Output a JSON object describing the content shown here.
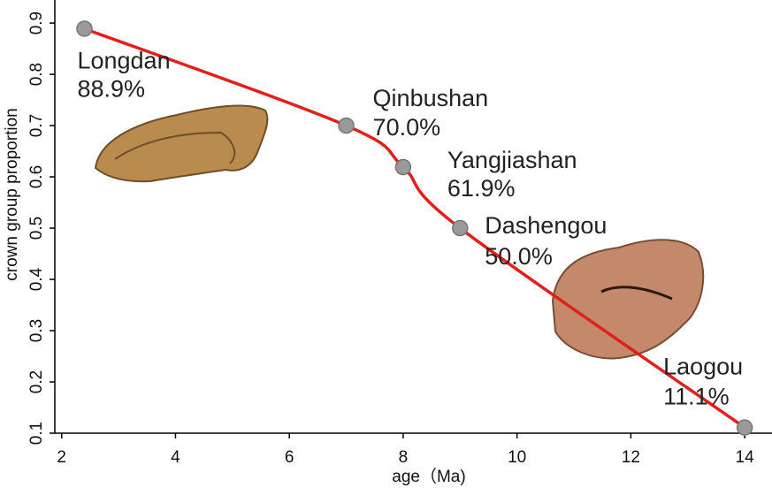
{
  "chart_data": {
    "type": "line",
    "x_label": "age（Ma)",
    "y_label": "crown group proportion",
    "x": [
      2.4,
      7,
      8,
      9,
      14
    ],
    "series": [
      {
        "color": "#e0201b",
        "categories": [
          "Longdan",
          "Qinbushan",
          "Yangjiashan",
          "Dashengou",
          "Laogou"
        ],
        "values": [
          0.889,
          0.7,
          0.619,
          0.5,
          0.111
        ],
        "value_labels": [
          "88.9%",
          "70.0%",
          "61.9%",
          "50.0%",
          "11.1%"
        ]
      }
    ],
    "marker_color": "#9a9a9a",
    "xlim": [
      1.88,
      14.48
    ],
    "xticks": [
      2,
      4,
      6,
      8,
      10,
      12,
      14
    ],
    "ylim": [
      0.1,
      0.945
    ],
    "yticks": [
      0.1,
      0.2,
      0.3,
      0.4,
      0.5,
      0.6,
      0.7,
      0.8,
      0.9
    ]
  }
}
